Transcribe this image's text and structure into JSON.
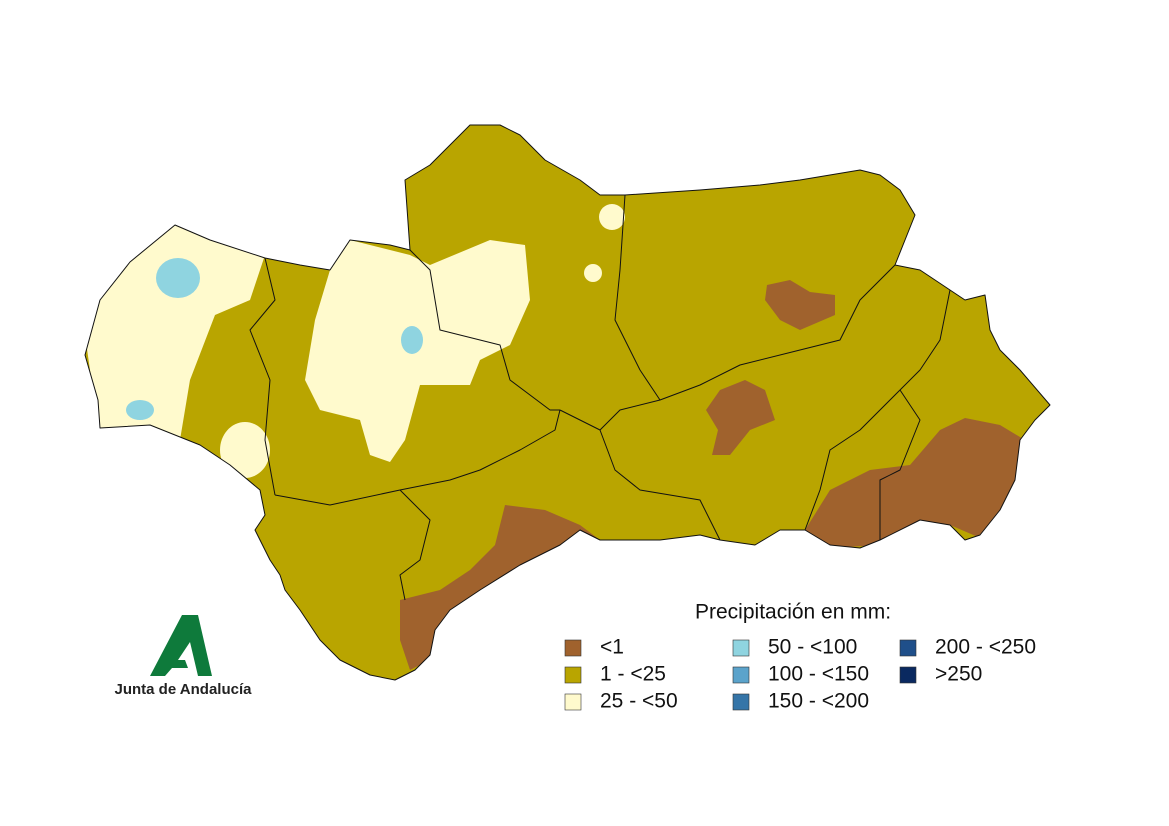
{
  "legend": {
    "title": "Precipitación en mm:",
    "items": [
      {
        "label": "<1",
        "color": "#a0622d"
      },
      {
        "label": "1 - <25",
        "color": "#b9a500"
      },
      {
        "label": "25 - <50",
        "color": "#fffacd"
      },
      {
        "label": "50 - <100",
        "color": "#8fd4e0"
      },
      {
        "label": "100 - <150",
        "color": "#5ba3cb"
      },
      {
        "label": "150 - <200",
        "color": "#3575a8"
      },
      {
        "label": "200 - <250",
        "color": "#1f4f8a"
      },
      {
        "label": ">250",
        "color": "#0a2960"
      }
    ]
  },
  "logo": {
    "text": "Junta de Andalucía"
  }
}
